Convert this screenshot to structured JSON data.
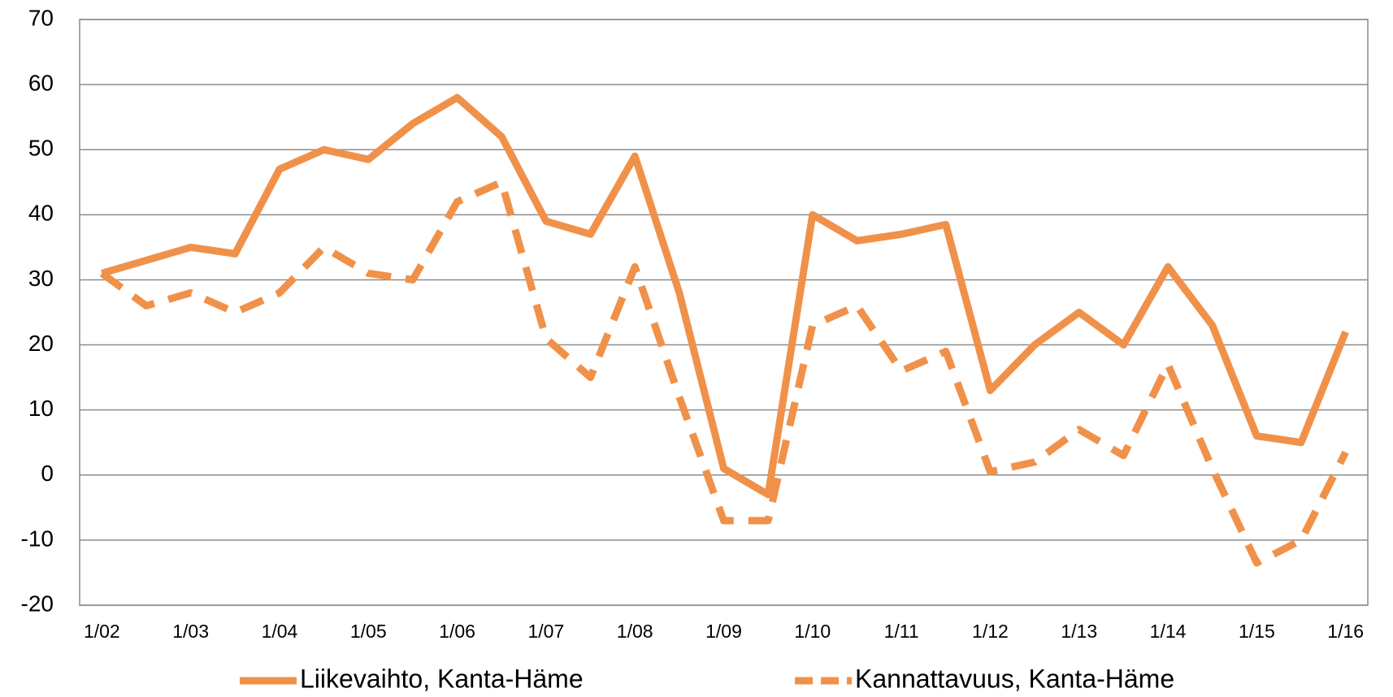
{
  "chart_data": {
    "type": "line",
    "categories": [
      "1/02",
      null,
      "1/03",
      null,
      "1/04",
      null,
      "1/05",
      null,
      "1/06",
      null,
      "1/07",
      null,
      "1/08",
      null,
      "1/09",
      null,
      "1/10",
      null,
      "1/11",
      null,
      "1/12",
      null,
      "1/13",
      null,
      "1/14",
      null,
      "1/15",
      null,
      "1/16"
    ],
    "series": [
      {
        "name": "Liikevaihto, Kanta-Häme",
        "color": "#f0914a",
        "dash": false,
        "values": [
          31,
          33,
          35,
          34,
          47,
          50,
          48.5,
          54,
          58,
          52,
          39,
          37,
          49,
          28,
          1,
          -3,
          40,
          36,
          37,
          38.5,
          13,
          20,
          25,
          20,
          32,
          23,
          6,
          5,
          22
        ]
      },
      {
        "name": "Kannattavuus, Kanta-Häme",
        "color": "#f0914a",
        "dash": true,
        "values": [
          31,
          26,
          28,
          25,
          28,
          35,
          31,
          30,
          42,
          45,
          21,
          15,
          32,
          12,
          -7,
          -7,
          23,
          26,
          16,
          19,
          0.5,
          2,
          7,
          3,
          17,
          1,
          -13.5,
          -10,
          3.5
        ]
      }
    ],
    "ylim": [
      -20,
      70
    ],
    "yticks": [
      -20,
      -10,
      0,
      10,
      20,
      30,
      40,
      50,
      60,
      70
    ],
    "grid": true,
    "legend": "bottom"
  }
}
